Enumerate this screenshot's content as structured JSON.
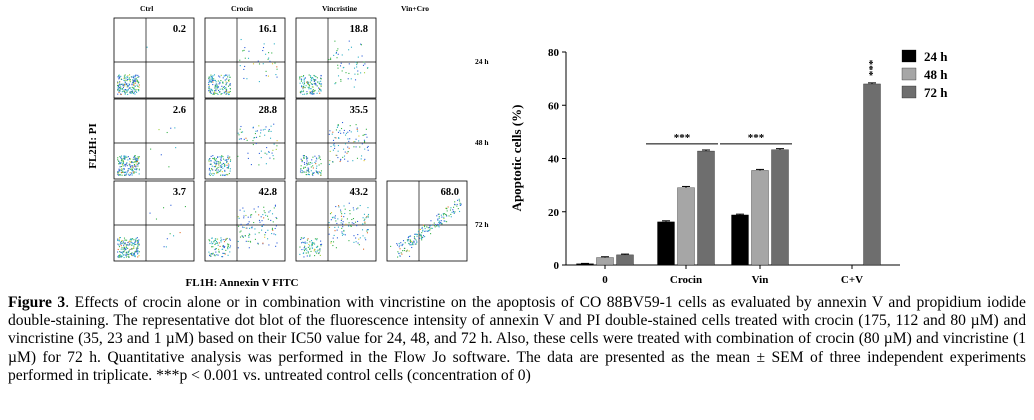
{
  "flow_cytometry": {
    "columns": [
      "Ctrl",
      "Crocin",
      "Vincristine",
      "Vin+Cro"
    ],
    "rows": [
      "24 h",
      "48 h",
      "72 h"
    ],
    "y_axis_label": "FL2H: PI",
    "x_axis_label": "FL1H: Annexin V FITC",
    "panels": [
      {
        "row": 0,
        "col": 0,
        "value": "0.2"
      },
      {
        "row": 0,
        "col": 1,
        "value": "16.1"
      },
      {
        "row": 0,
        "col": 2,
        "value": "18.8"
      },
      {
        "row": 1,
        "col": 0,
        "value": "2.6"
      },
      {
        "row": 1,
        "col": 1,
        "value": "28.8"
      },
      {
        "row": 1,
        "col": 2,
        "value": "35.5"
      },
      {
        "row": 2,
        "col": 0,
        "value": "3.7"
      },
      {
        "row": 2,
        "col": 1,
        "value": "42.8"
      },
      {
        "row": 2,
        "col": 2,
        "value": "43.2"
      },
      {
        "row": 2,
        "col": 3,
        "value": "68.0"
      }
    ]
  },
  "chart_data": {
    "type": "bar",
    "categories": [
      "0",
      "Crocin",
      "Vin",
      "C+V"
    ],
    "series": [
      {
        "name": "24 h",
        "color": "#000000",
        "values": [
          0.5,
          16.2,
          18.8,
          null
        ]
      },
      {
        "name": "48 h",
        "color": "#a6a6a6",
        "values": [
          2.8,
          29.0,
          35.5,
          null
        ]
      },
      {
        "name": "72 h",
        "color": "#6e6e6e",
        "values": [
          3.8,
          42.8,
          43.3,
          68.0
        ]
      }
    ],
    "error": [
      [
        0.1,
        0.4,
        0.3,
        null
      ],
      [
        0.3,
        0.5,
        0.4,
        null
      ],
      [
        0.3,
        0.4,
        0.4,
        0.4
      ]
    ],
    "ylabel": "Apoptotic cells (%)",
    "xlabel": "",
    "ylim": [
      0,
      80
    ],
    "yticks": [
      0,
      20,
      40,
      60,
      80
    ],
    "legend_position": "top-right",
    "significance": [
      {
        "group": "Crocin",
        "label": "***",
        "type": "bracket"
      },
      {
        "group": "Vin",
        "label": "***",
        "type": "bracket"
      },
      {
        "group": "C+V",
        "label": "***",
        "type": "vertical"
      }
    ]
  },
  "caption": {
    "label": "Figure 3",
    "text": ". Effects of crocin alone or in combination with vincristine on the apoptosis of CO 88BV59-1 cells as evaluated by annexin V and propidium iodide double-staining. The representative dot blot of the fluorescence intensity of annexin V and PI double-stained cells treated with crocin (175, 112 and 80 µM) and vincristine (35, 23 and 1 µM) based on their IC50 value for 24, 48, and 72 h. Also, these cells were treated with combination of crocin (80 µM) and vincristine (1 µM) for 72 h. Quantitative analysis was performed in the Flow Jo software. The data are presented as the mean ± SEM of three independent experiments performed in triplicate. ***p < 0.001 vs. untreated control cells (concentration of 0)"
  }
}
